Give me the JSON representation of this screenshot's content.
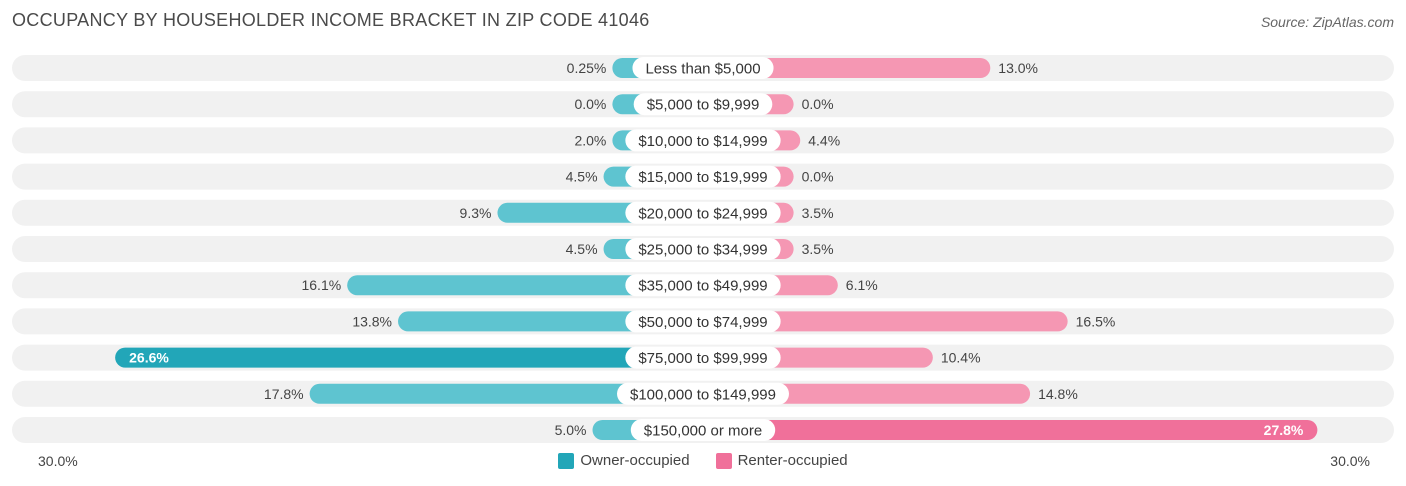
{
  "header": {
    "title": "OCCUPANCY BY HOUSEHOLDER INCOME BRACKET IN ZIP CODE 41046",
    "source": "Source: ZipAtlas.com"
  },
  "colors": {
    "owner": "#5ec4d0",
    "owner_strong": "#22a6b8",
    "renter": "#f597b3",
    "renter_strong": "#f0709a",
    "track": "#f1f1f1"
  },
  "legend": {
    "owner_label": "Owner-occupied",
    "renter_label": "Renter-occupied"
  },
  "axis": {
    "left_label": "30.0%",
    "right_label": "30.0%"
  },
  "chart_data": {
    "type": "bar",
    "orientation": "horizontal-diverging",
    "xlim": [
      0,
      30
    ],
    "categories": [
      "Less than $5,000",
      "$5,000 to $9,999",
      "$10,000 to $14,999",
      "$15,000 to $19,999",
      "$20,000 to $24,999",
      "$25,000 to $34,999",
      "$35,000 to $49,999",
      "$50,000 to $74,999",
      "$75,000 to $99,999",
      "$100,000 to $149,999",
      "$150,000 or more"
    ],
    "series": [
      {
        "name": "Owner-occupied",
        "values": [
          0.25,
          0.0,
          2.0,
          4.5,
          9.3,
          4.5,
          16.1,
          13.8,
          26.6,
          17.8,
          5.0
        ],
        "labels": [
          "0.25%",
          "0.0%",
          "2.0%",
          "4.5%",
          "9.3%",
          "4.5%",
          "16.1%",
          "13.8%",
          "26.6%",
          "17.8%",
          "5.0%"
        ]
      },
      {
        "name": "Renter-occupied",
        "values": [
          13.0,
          0.0,
          4.4,
          0.0,
          3.5,
          3.5,
          6.1,
          16.5,
          10.4,
          14.8,
          27.8
        ],
        "labels": [
          "13.0%",
          "0.0%",
          "4.4%",
          "0.0%",
          "3.5%",
          "3.5%",
          "6.1%",
          "16.5%",
          "10.4%",
          "14.8%",
          "27.8%"
        ]
      }
    ],
    "legend_position": "bottom-center"
  }
}
